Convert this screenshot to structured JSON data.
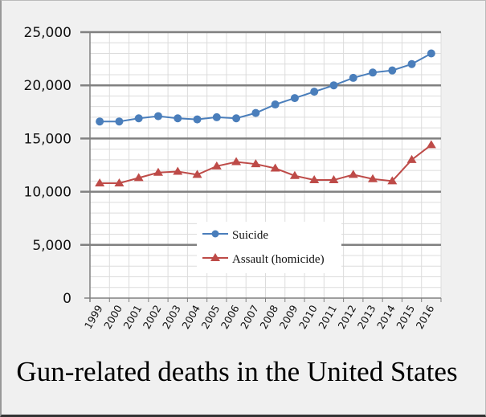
{
  "chart_data": {
    "type": "line",
    "title": "Gun-related deaths in the United States",
    "categories": [
      "1999",
      "2000",
      "2001",
      "2002",
      "2003",
      "2004",
      "2005",
      "2006",
      "2007",
      "2008",
      "2009",
      "2010",
      "2011",
      "2012",
      "2013",
      "2014",
      "2015",
      "2016"
    ],
    "series": [
      {
        "name": "Suicide",
        "color": "#4a7ebb",
        "marker": "circle",
        "values": [
          16600,
          16600,
          16900,
          17100,
          16900,
          16800,
          17000,
          16900,
          17400,
          18200,
          18800,
          19400,
          20000,
          20700,
          21200,
          21400,
          22000,
          23000
        ]
      },
      {
        "name": "Assault (homicide)",
        "color": "#be4b48",
        "marker": "triangle",
        "values": [
          10800,
          10800,
          11300,
          11800,
          11900,
          11600,
          12400,
          12800,
          12600,
          12200,
          11500,
          11100,
          11100,
          11600,
          11200,
          11000,
          13000,
          14400
        ]
      }
    ],
    "ylim": [
      0,
      25000
    ],
    "yticks": [
      "0",
      "5,000",
      "10,000",
      "15,000",
      "20,000",
      "25,000"
    ],
    "ytick_values": [
      0,
      5000,
      10000,
      15000,
      20000,
      25000
    ],
    "grid": true,
    "legend_placement": "bottom-center inside plot"
  }
}
